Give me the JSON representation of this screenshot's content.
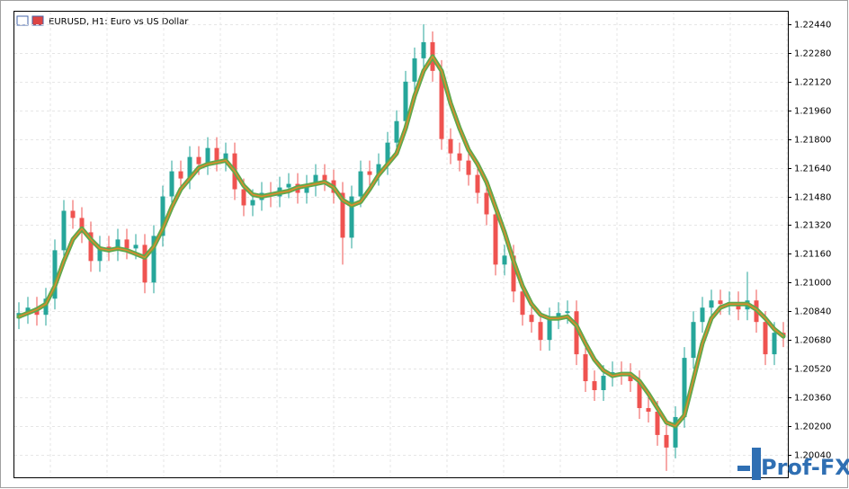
{
  "chart_data": {
    "type": "candlestick",
    "title": "EURUSD, H1:  Euro vs US Dollar",
    "watermark": "Prof-FX",
    "ylim": [
      1.19914,
      1.2251
    ],
    "yticks": [
      {
        "value": 1.2004,
        "label": "1.20040"
      },
      {
        "value": 1.202,
        "label": "1.20200"
      },
      {
        "value": 1.2036,
        "label": "1.20360"
      },
      {
        "value": 1.2052,
        "label": "1.20520"
      },
      {
        "value": 1.2068,
        "label": "1.20680"
      },
      {
        "value": 1.2084,
        "label": "1.20840"
      },
      {
        "value": 1.21,
        "label": "1.21000"
      },
      {
        "value": 1.2116,
        "label": "1.21160"
      },
      {
        "value": 1.2132,
        "label": "1.21320"
      },
      {
        "value": 1.2148,
        "label": "1.21480"
      },
      {
        "value": 1.2164,
        "label": "1.21640"
      },
      {
        "value": 1.218,
        "label": "1.21800"
      },
      {
        "value": 1.2196,
        "label": "1.21960"
      },
      {
        "value": 1.2212,
        "label": "1.22120"
      },
      {
        "value": 1.2228,
        "label": "1.22280"
      },
      {
        "value": 1.2244,
        "label": "1.22440"
      }
    ],
    "grid": true,
    "colors": {
      "up": "#26a69a",
      "down": "#ef5350",
      "ma": "#5fa84c",
      "ma_core": "#e08a2c"
    },
    "open": [
      1.208,
      1.2083,
      1.2086,
      1.2082,
      1.2091,
      1.2118,
      1.214,
      1.2136,
      1.2128,
      1.2112,
      1.212,
      1.2118,
      1.2124,
      1.2119,
      1.2121,
      1.21,
      1.2126,
      1.2148,
      1.2162,
      1.2158,
      1.217,
      1.2166,
      1.2175,
      1.2168,
      1.2172,
      1.2152,
      1.2143,
      1.2146,
      1.215,
      1.2148,
      1.2153,
      1.2155,
      1.215,
      1.2154,
      1.216,
      1.2157,
      1.215,
      1.2125,
      1.2148,
      1.2162,
      1.216,
      1.2166,
      1.2178,
      1.219,
      1.2212,
      1.2225,
      1.2234,
      1.2218,
      1.218,
      1.2172,
      1.2168,
      1.216,
      1.215,
      1.2138,
      1.211,
      1.2115,
      1.2095,
      1.2082,
      1.2078,
      1.2068,
      1.208,
      1.2083,
      1.2084,
      1.206,
      1.2045,
      1.204,
      1.2048,
      1.205,
      1.2049,
      1.2045,
      1.203,
      1.2028,
      1.2015,
      1.2008,
      1.2025,
      1.2058,
      1.2078,
      1.2086,
      1.209,
      1.2088,
      1.2089,
      1.2085,
      1.209,
      1.2078,
      1.206,
      1.2072
    ],
    "high": [
      1.2089,
      1.2092,
      1.2092,
      1.2097,
      1.2124,
      1.2146,
      1.2146,
      1.2142,
      1.2134,
      1.2126,
      1.2126,
      1.213,
      1.213,
      1.2127,
      1.2127,
      1.2132,
      1.2154,
      1.2168,
      1.2168,
      1.2176,
      1.2176,
      1.2181,
      1.2181,
      1.2178,
      1.2178,
      1.2158,
      1.2152,
      1.2156,
      1.2156,
      1.2159,
      1.2161,
      1.2161,
      1.216,
      1.2166,
      1.2166,
      1.2163,
      1.2156,
      1.2154,
      1.2168,
      1.2168,
      1.2172,
      1.2184,
      1.2196,
      1.2218,
      1.2231,
      1.2244,
      1.224,
      1.2224,
      1.2186,
      1.2178,
      1.2174,
      1.2166,
      1.2156,
      1.2144,
      1.2121,
      1.2121,
      1.2101,
      1.2088,
      1.2084,
      1.2086,
      1.2089,
      1.209,
      1.209,
      1.2066,
      1.2051,
      1.2054,
      1.2056,
      1.2056,
      1.2055,
      1.2051,
      1.2036,
      1.2034,
      1.2021,
      1.2031,
      1.2064,
      1.2084,
      1.2092,
      1.2096,
      1.2096,
      1.2095,
      1.2095,
      1.2106,
      1.2096,
      1.2084,
      1.2078,
      1.2078
    ],
    "low": [
      1.2074,
      1.2077,
      1.2076,
      1.2076,
      1.2085,
      1.2112,
      1.213,
      1.2122,
      1.2106,
      1.2106,
      1.2112,
      1.2112,
      1.2113,
      1.2113,
      1.2094,
      1.2094,
      1.212,
      1.2142,
      1.2152,
      1.2152,
      1.216,
      1.216,
      1.2162,
      1.2162,
      1.2146,
      1.2137,
      1.2137,
      1.214,
      1.2142,
      1.2142,
      1.2147,
      1.2144,
      1.2144,
      1.2148,
      1.2151,
      1.2144,
      1.211,
      1.2119,
      1.2142,
      1.2154,
      1.2154,
      1.216,
      1.2172,
      1.2184,
      1.2206,
      1.2219,
      1.2212,
      1.2174,
      1.2166,
      1.2162,
      1.2154,
      1.2144,
      1.2132,
      1.2104,
      1.2104,
      1.2089,
      1.2076,
      1.2072,
      1.2062,
      1.2062,
      1.2074,
      1.2077,
      1.2054,
      1.2039,
      1.2034,
      1.2034,
      1.2042,
      1.2043,
      1.2039,
      1.2024,
      1.2022,
      1.2009,
      1.1995,
      1.2002,
      1.2019,
      1.2052,
      1.2072,
      1.208,
      1.2082,
      1.2082,
      1.2079,
      1.2079,
      1.2072,
      1.2054,
      1.2054,
      1.2064
    ],
    "close": [
      1.2083,
      1.2086,
      1.2082,
      1.2091,
      1.2118,
      1.214,
      1.2136,
      1.2128,
      1.2112,
      1.212,
      1.2118,
      1.2124,
      1.2119,
      1.2121,
      1.21,
      1.2126,
      1.2148,
      1.2162,
      1.2158,
      1.217,
      1.2166,
      1.2175,
      1.2168,
      1.2172,
      1.2152,
      1.2143,
      1.2146,
      1.215,
      1.2148,
      1.2153,
      1.2155,
      1.215,
      1.2154,
      1.216,
      1.2157,
      1.215,
      1.2125,
      1.2148,
      1.2162,
      1.216,
      1.2166,
      1.2178,
      1.219,
      1.2212,
      1.2225,
      1.2234,
      1.2218,
      1.218,
      1.2172,
      1.2168,
      1.216,
      1.215,
      1.2138,
      1.211,
      1.2115,
      1.2095,
      1.2082,
      1.2078,
      1.2068,
      1.208,
      1.2083,
      1.2084,
      1.206,
      1.2045,
      1.204,
      1.2048,
      1.205,
      1.2049,
      1.2045,
      1.203,
      1.2028,
      1.2015,
      1.2008,
      1.2025,
      1.2058,
      1.2078,
      1.2086,
      1.209,
      1.2088,
      1.2089,
      1.2085,
      1.209,
      1.2078,
      1.206,
      1.2072,
      1.207
    ],
    "ma": [
      1.2081,
      1.2083,
      1.2085,
      1.2088,
      1.2098,
      1.2112,
      1.2124,
      1.213,
      1.2124,
      1.2119,
      1.2118,
      1.2119,
      1.2118,
      1.2116,
      1.2114,
      1.212,
      1.213,
      1.2142,
      1.2152,
      1.2158,
      1.2164,
      1.2166,
      1.2167,
      1.2168,
      1.2162,
      1.2154,
      1.2149,
      1.2148,
      1.2149,
      1.215,
      1.2151,
      1.2153,
      1.2154,
      1.2155,
      1.2156,
      1.2153,
      1.2146,
      1.2143,
      1.2145,
      1.2152,
      1.216,
      1.2166,
      1.2172,
      1.2186,
      1.2204,
      1.2218,
      1.2226,
      1.2218,
      1.22,
      1.2186,
      1.2174,
      1.2166,
      1.2156,
      1.2142,
      1.2128,
      1.2112,
      1.2098,
      1.2088,
      1.2082,
      1.208,
      1.208,
      1.2081,
      1.2076,
      1.2066,
      1.2057,
      1.2051,
      1.2048,
      1.2049,
      1.2049,
      1.2045,
      1.2038,
      1.203,
      1.2022,
      1.202,
      1.2026,
      1.2046,
      1.2066,
      1.208,
      1.2086,
      1.2088,
      1.2088,
      1.2088,
      1.2085,
      1.208,
      1.2074,
      1.207
    ]
  }
}
